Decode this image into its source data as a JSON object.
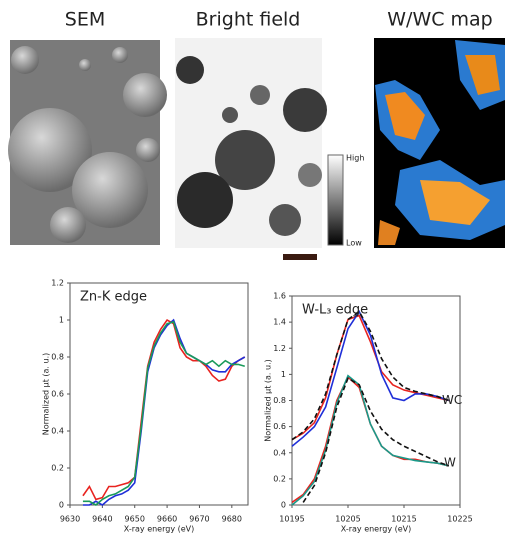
{
  "images": [
    "SEM",
    "Bright field",
    "W/WC map"
  ],
  "colorbar": {
    "high": "High",
    "low": "Low"
  },
  "chart_data": [
    {
      "type": "line",
      "annotations": [
        "Zn-K edge"
      ],
      "x_label": "X-ray energy (eV)",
      "y_label": "Normalized μt (a. u.)",
      "x": [
        9634,
        9636,
        9638,
        9640,
        9642,
        9644,
        9646,
        9648,
        9650,
        9652,
        9654,
        9656,
        9658,
        9660,
        9662,
        9664,
        9666,
        9668,
        9670,
        9672,
        9674,
        9676,
        9678,
        9680,
        9682,
        9684
      ],
      "series": [
        {
          "color": "#e8231f",
          "dash": false,
          "values": [
            0.05,
            0.1,
            0.03,
            0.04,
            0.1,
            0.1,
            0.11,
            0.12,
            0.15,
            0.45,
            0.75,
            0.88,
            0.95,
            1.0,
            0.98,
            0.85,
            0.8,
            0.78,
            0.78,
            0.75,
            0.7,
            0.67,
            0.68,
            0.75,
            0.78,
            0.8
          ]
        },
        {
          "color": "#1f2fd8",
          "dash": false,
          "values": [
            0.0,
            0.0,
            0.02,
            0.0,
            0.03,
            0.05,
            0.06,
            0.08,
            0.12,
            0.4,
            0.72,
            0.85,
            0.92,
            0.97,
            1.0,
            0.9,
            0.82,
            0.8,
            0.78,
            0.76,
            0.73,
            0.72,
            0.72,
            0.76,
            0.78,
            0.8
          ]
        },
        {
          "color": "#1a9a5a",
          "dash": false,
          "values": [
            0.02,
            0.02,
            0.0,
            0.03,
            0.05,
            0.06,
            0.08,
            0.1,
            0.15,
            0.42,
            0.74,
            0.86,
            0.93,
            0.98,
            0.99,
            0.88,
            0.82,
            0.8,
            0.78,
            0.76,
            0.78,
            0.75,
            0.78,
            0.76,
            0.76,
            0.75
          ]
        }
      ],
      "xlim": [
        9630,
        9685
      ],
      "xticks": [
        9630,
        9640,
        9650,
        9660,
        9670,
        9680
      ],
      "ylim": [
        0,
        1.2
      ],
      "yticks": [
        0,
        0.2,
        0.4,
        0.6,
        0.8,
        1,
        1.2
      ]
    },
    {
      "type": "line",
      "annotations": [
        "W-L₃ edge",
        "WC",
        "W"
      ],
      "x_label": "X-ray energy (eV)",
      "y_label": "Normalized μt (a. u.)",
      "x": [
        10195,
        10197,
        10199,
        10201,
        10203,
        10205,
        10207,
        10209,
        10211,
        10213,
        10215,
        10217,
        10219,
        10221,
        10223
      ],
      "series": [
        {
          "color": "#e8231f",
          "dash": false,
          "values": [
            0.5,
            0.55,
            0.63,
            0.82,
            1.15,
            1.42,
            1.45,
            1.25,
            1.02,
            0.92,
            0.88,
            0.86,
            0.84,
            0.82,
            0.8
          ]
        },
        {
          "color": "#1f2fd8",
          "dash": false,
          "values": [
            0.45,
            0.52,
            0.6,
            0.75,
            1.05,
            1.35,
            1.48,
            1.3,
            1.0,
            0.82,
            0.8,
            0.85,
            0.85,
            0.83,
            0.8
          ]
        },
        {
          "color": "#111111",
          "dash": true,
          "values": [
            0.5,
            0.56,
            0.66,
            0.85,
            1.15,
            1.42,
            1.48,
            1.33,
            1.12,
            0.98,
            0.9,
            0.87,
            0.85,
            0.83,
            0.8
          ]
        },
        {
          "color": "#e8231f",
          "dash": false,
          "values": [
            0.02,
            0.08,
            0.2,
            0.45,
            0.8,
            0.98,
            0.9,
            0.62,
            0.45,
            0.38,
            0.35,
            0.35,
            0.33,
            0.32,
            0.3
          ]
        },
        {
          "color": "#1a9a8a",
          "dash": false,
          "values": [
            0.0,
            0.07,
            0.18,
            0.42,
            0.78,
            0.99,
            0.92,
            0.62,
            0.45,
            0.38,
            0.36,
            0.34,
            0.33,
            0.32,
            0.3
          ]
        },
        {
          "color": "#111111",
          "dash": true,
          "values": [
            null,
            0.02,
            0.15,
            0.4,
            0.75,
            0.97,
            0.92,
            0.72,
            0.58,
            0.5,
            0.45,
            0.41,
            0.37,
            0.33,
            0.3
          ]
        }
      ],
      "xlim": [
        10195,
        10225
      ],
      "xticks": [
        10195,
        10205,
        10215,
        10225
      ],
      "ylim": [
        0,
        1.6
      ],
      "yticks": [
        0,
        0.2,
        0.4,
        0.6,
        0.8,
        1,
        1.2,
        1.4,
        1.6
      ]
    }
  ]
}
